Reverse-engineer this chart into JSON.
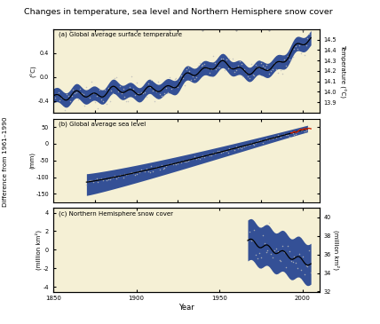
{
  "title": "Changes in temperature, sea level and Northern Hemisphere snow cover",
  "bg_color": "#f5f0d5",
  "outer_bg": "#ffffff",
  "panel_a": {
    "label": "(a) Global average surface temperature",
    "xlim": [
      1850,
      2010
    ],
    "ylim_left": [
      -0.6,
      0.8
    ],
    "ylim_right": [
      13.8,
      14.6
    ],
    "ylabel_left": "(°C)",
    "ylabel_right": "Temperature (°C)",
    "yticks_left": [
      -0.4,
      0.0,
      0.4
    ],
    "yticks_right": [
      13.9,
      14.0,
      14.1,
      14.2,
      14.3,
      14.4,
      14.5
    ]
  },
  "panel_b": {
    "label": "(b) Global average sea level",
    "xlim": [
      1850,
      2010
    ],
    "ylim": [
      -175,
      75
    ],
    "ylabel": "(mm)",
    "yticks": [
      -150,
      -100,
      -50,
      0,
      50
    ]
  },
  "panel_c": {
    "label": "(c) Northern Hemisphere snow cover",
    "xlim": [
      1850,
      2010
    ],
    "ylim_left": [
      -4.5,
      4.5
    ],
    "ylim_right": [
      32,
      41
    ],
    "ylabel_left": "(million km²)",
    "ylabel_right": "(million km²)",
    "yticks_left": [
      -4,
      -2,
      0,
      2,
      4
    ],
    "yticks_right": [
      32,
      34,
      36,
      38,
      40
    ]
  },
  "shared_xlabel": "Year",
  "xticks": [
    1850,
    1900,
    1950,
    2000
  ],
  "blue_fill": "#1f3f8f",
  "black_line": "#000000",
  "scatter_color": "#bbbbbb",
  "red_line": "#cc2200",
  "dot_top": "#999999"
}
